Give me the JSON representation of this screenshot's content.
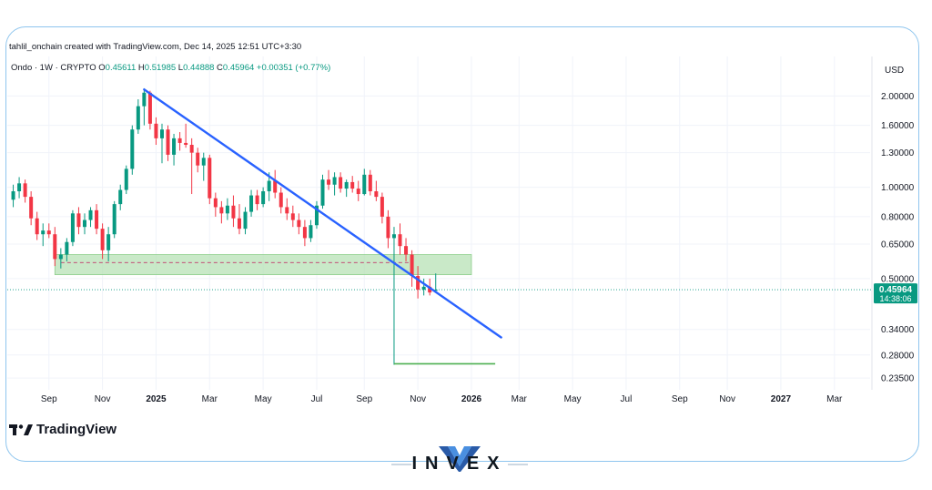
{
  "header": {
    "caption": "tahlil_onchain created with TradingView.com, Dec 14, 2025 12:51 UTC+3:30"
  },
  "chart_data": {
    "type": "candlestick",
    "symbol": "Ondo",
    "interval": "1W",
    "exchange": "CRYPTO",
    "legend_items": [
      {
        "label": "Ondo · 1W · CRYPTO",
        "color": "#131722"
      },
      {
        "label": "O",
        "color": "#131722"
      },
      {
        "label": "0.45611",
        "color": "#089981"
      },
      {
        "label": "H",
        "color": "#131722"
      },
      {
        "label": "0.51985",
        "color": "#089981"
      },
      {
        "label": "L",
        "color": "#131722"
      },
      {
        "label": "0.44888",
        "color": "#089981"
      },
      {
        "label": "C",
        "color": "#131722"
      },
      {
        "label": "0.45964",
        "color": "#089981"
      },
      {
        "label": "+0.00351 (+0.77%)",
        "color": "#089981"
      }
    ],
    "ohlc": {
      "open": 0.45611,
      "high": 0.51985,
      "low": 0.44888,
      "close": 0.45964,
      "change": "+0.00351 (+0.77%)"
    },
    "currency": "USD",
    "y_scale": "log",
    "ylim": [
      0.215,
      2.35
    ],
    "y_ticks": [
      {
        "value": 2.0,
        "label": "2.00000"
      },
      {
        "value": 1.6,
        "label": "1.60000"
      },
      {
        "value": 1.3,
        "label": "1.30000"
      },
      {
        "value": 1.0,
        "label": "1.00000"
      },
      {
        "value": 0.8,
        "label": "0.80000"
      },
      {
        "value": 0.65,
        "label": "0.65000"
      },
      {
        "value": 0.5,
        "label": "0.50000"
      },
      {
        "value": 0.34,
        "label": "0.34000"
      },
      {
        "value": 0.28,
        "label": "0.28000"
      },
      {
        "value": 0.235,
        "label": "0.23500"
      }
    ],
    "x_ticks": [
      {
        "index": 6,
        "label": "Sep",
        "bold": false
      },
      {
        "index": 15,
        "label": "Nov",
        "bold": false
      },
      {
        "index": 24,
        "label": "2025",
        "bold": true
      },
      {
        "index": 33,
        "label": "Mar",
        "bold": false
      },
      {
        "index": 42,
        "label": "May",
        "bold": false
      },
      {
        "index": 51,
        "label": "Jul",
        "bold": false
      },
      {
        "index": 59,
        "label": "Sep",
        "bold": false
      },
      {
        "index": 68,
        "label": "Nov",
        "bold": false
      },
      {
        "index": 77,
        "label": "2026",
        "bold": true
      },
      {
        "index": 85,
        "label": "Mar",
        "bold": false
      },
      {
        "index": 94,
        "label": "May",
        "bold": false
      },
      {
        "index": 103,
        "label": "Jul",
        "bold": false
      },
      {
        "index": 112,
        "label": "Sep",
        "bold": false
      },
      {
        "index": 120,
        "label": "Nov",
        "bold": false
      },
      {
        "index": 129,
        "label": "2027",
        "bold": true
      },
      {
        "index": 138,
        "label": "Mar",
        "bold": false
      }
    ],
    "x_index_range": [
      -1,
      144
    ],
    "candles": [
      {
        "o": 0.91,
        "h": 1.02,
        "l": 0.86,
        "c": 0.97
      },
      {
        "o": 0.97,
        "h": 1.08,
        "l": 0.92,
        "c": 1.03
      },
      {
        "o": 1.03,
        "h": 1.06,
        "l": 0.89,
        "c": 0.93
      },
      {
        "o": 0.93,
        "h": 0.97,
        "l": 0.75,
        "c": 0.79
      },
      {
        "o": 0.79,
        "h": 0.83,
        "l": 0.67,
        "c": 0.7
      },
      {
        "o": 0.7,
        "h": 0.76,
        "l": 0.64,
        "c": 0.72
      },
      {
        "o": 0.72,
        "h": 0.76,
        "l": 0.68,
        "c": 0.7
      },
      {
        "o": 0.7,
        "h": 0.74,
        "l": 0.55,
        "c": 0.58
      },
      {
        "o": 0.58,
        "h": 0.63,
        "l": 0.54,
        "c": 0.6
      },
      {
        "o": 0.6,
        "h": 0.68,
        "l": 0.57,
        "c": 0.66
      },
      {
        "o": 0.66,
        "h": 0.84,
        "l": 0.64,
        "c": 0.82
      },
      {
        "o": 0.82,
        "h": 0.86,
        "l": 0.7,
        "c": 0.74
      },
      {
        "o": 0.74,
        "h": 0.82,
        "l": 0.7,
        "c": 0.78
      },
      {
        "o": 0.78,
        "h": 0.86,
        "l": 0.74,
        "c": 0.84
      },
      {
        "o": 0.84,
        "h": 0.88,
        "l": 0.7,
        "c": 0.73
      },
      {
        "o": 0.73,
        "h": 0.76,
        "l": 0.58,
        "c": 0.62
      },
      {
        "o": 0.62,
        "h": 0.74,
        "l": 0.57,
        "c": 0.7
      },
      {
        "o": 0.7,
        "h": 0.9,
        "l": 0.68,
        "c": 0.88
      },
      {
        "o": 0.88,
        "h": 1.02,
        "l": 0.84,
        "c": 0.98
      },
      {
        "o": 0.98,
        "h": 1.18,
        "l": 0.95,
        "c": 1.15
      },
      {
        "o": 1.15,
        "h": 1.6,
        "l": 1.1,
        "c": 1.55
      },
      {
        "o": 1.55,
        "h": 1.95,
        "l": 1.5,
        "c": 1.85
      },
      {
        "o": 1.85,
        "h": 2.12,
        "l": 1.6,
        "c": 2.05
      },
      {
        "o": 2.05,
        "h": 2.08,
        "l": 1.55,
        "c": 1.62
      },
      {
        "o": 1.62,
        "h": 1.7,
        "l": 1.38,
        "c": 1.45
      },
      {
        "o": 1.45,
        "h": 1.62,
        "l": 1.2,
        "c": 1.55
      },
      {
        "o": 1.55,
        "h": 1.6,
        "l": 1.22,
        "c": 1.28
      },
      {
        "o": 1.28,
        "h": 1.5,
        "l": 1.18,
        "c": 1.45
      },
      {
        "o": 1.45,
        "h": 1.52,
        "l": 1.32,
        "c": 1.4
      },
      {
        "o": 1.4,
        "h": 1.62,
        "l": 1.35,
        "c": 1.38
      },
      {
        "o": 1.38,
        "h": 1.45,
        "l": 0.95,
        "c": 1.3
      },
      {
        "o": 1.3,
        "h": 1.35,
        "l": 1.12,
        "c": 1.18
      },
      {
        "o": 1.18,
        "h": 1.3,
        "l": 1.05,
        "c": 1.25
      },
      {
        "o": 1.25,
        "h": 1.28,
        "l": 0.88,
        "c": 0.92
      },
      {
        "o": 0.92,
        "h": 0.96,
        "l": 0.8,
        "c": 0.86
      },
      {
        "o": 0.86,
        "h": 0.9,
        "l": 0.76,
        "c": 0.82
      },
      {
        "o": 0.82,
        "h": 0.92,
        "l": 0.78,
        "c": 0.87
      },
      {
        "o": 0.87,
        "h": 0.94,
        "l": 0.74,
        "c": 0.79
      },
      {
        "o": 0.79,
        "h": 0.88,
        "l": 0.7,
        "c": 0.73
      },
      {
        "o": 0.73,
        "h": 0.86,
        "l": 0.7,
        "c": 0.83
      },
      {
        "o": 0.83,
        "h": 0.98,
        "l": 0.8,
        "c": 0.94
      },
      {
        "o": 0.94,
        "h": 0.98,
        "l": 0.84,
        "c": 0.88
      },
      {
        "o": 0.88,
        "h": 1.0,
        "l": 0.86,
        "c": 0.97
      },
      {
        "o": 0.97,
        "h": 1.12,
        "l": 0.9,
        "c": 1.05
      },
      {
        "o": 1.05,
        "h": 1.14,
        "l": 0.92,
        "c": 0.96
      },
      {
        "o": 0.96,
        "h": 1.0,
        "l": 0.82,
        "c": 0.86
      },
      {
        "o": 0.86,
        "h": 0.92,
        "l": 0.78,
        "c": 0.82
      },
      {
        "o": 0.82,
        "h": 0.87,
        "l": 0.74,
        "c": 0.78
      },
      {
        "o": 0.78,
        "h": 0.82,
        "l": 0.7,
        "c": 0.74
      },
      {
        "o": 0.74,
        "h": 0.78,
        "l": 0.64,
        "c": 0.68
      },
      {
        "o": 0.68,
        "h": 0.78,
        "l": 0.66,
        "c": 0.75
      },
      {
        "o": 0.75,
        "h": 0.9,
        "l": 0.73,
        "c": 0.87
      },
      {
        "o": 0.87,
        "h": 1.1,
        "l": 0.85,
        "c": 1.06
      },
      {
        "o": 1.06,
        "h": 1.14,
        "l": 0.98,
        "c": 1.02
      },
      {
        "o": 1.02,
        "h": 1.12,
        "l": 0.94,
        "c": 1.08
      },
      {
        "o": 1.08,
        "h": 1.12,
        "l": 0.96,
        "c": 0.99
      },
      {
        "o": 0.99,
        "h": 1.06,
        "l": 0.93,
        "c": 1.04
      },
      {
        "o": 1.04,
        "h": 1.09,
        "l": 0.96,
        "c": 0.99
      },
      {
        "o": 0.99,
        "h": 1.05,
        "l": 0.9,
        "c": 0.95
      },
      {
        "o": 0.95,
        "h": 1.15,
        "l": 0.94,
        "c": 1.1
      },
      {
        "o": 1.1,
        "h": 1.14,
        "l": 0.94,
        "c": 0.97
      },
      {
        "o": 0.97,
        "h": 1.05,
        "l": 0.9,
        "c": 0.93
      },
      {
        "o": 0.93,
        "h": 0.96,
        "l": 0.76,
        "c": 0.8
      },
      {
        "o": 0.8,
        "h": 0.84,
        "l": 0.63,
        "c": 0.68
      },
      {
        "o": 0.68,
        "h": 0.74,
        "l": 0.26,
        "c": 0.7
      },
      {
        "o": 0.7,
        "h": 0.76,
        "l": 0.6,
        "c": 0.64
      },
      {
        "o": 0.64,
        "h": 0.68,
        "l": 0.57,
        "c": 0.6
      },
      {
        "o": 0.6,
        "h": 0.62,
        "l": 0.47,
        "c": 0.51
      },
      {
        "o": 0.51,
        "h": 0.55,
        "l": 0.43,
        "c": 0.46
      },
      {
        "o": 0.46,
        "h": 0.5,
        "l": 0.44,
        "c": 0.47
      },
      {
        "o": 0.47,
        "h": 0.5,
        "l": 0.44,
        "c": 0.45
      },
      {
        "o": 0.456,
        "h": 0.52,
        "l": 0.449,
        "c": 0.4596
      }
    ],
    "trendline": {
      "start": {
        "index": 22,
        "value": 2.1
      },
      "end": {
        "index": 82,
        "value": 0.32
      },
      "color": "#2962ff"
    },
    "support_zone": {
      "start_index": 7,
      "end_index": 77,
      "top": 0.6,
      "bottom": 0.515,
      "color": "#b7e1b5"
    },
    "support_dashed_level": {
      "value": 0.565,
      "start_index": 8,
      "end_index": 67
    },
    "target_level": {
      "value": 0.262,
      "start_index": 64,
      "end_index": 81,
      "color": "#4caf50"
    },
    "last_price": {
      "value": 0.45964,
      "label": "0.45964",
      "countdown": "14:38:06",
      "color": "#089981"
    },
    "grid": true
  },
  "branding": {
    "tv_label": "TradingView",
    "invex_label": "INVEX"
  }
}
